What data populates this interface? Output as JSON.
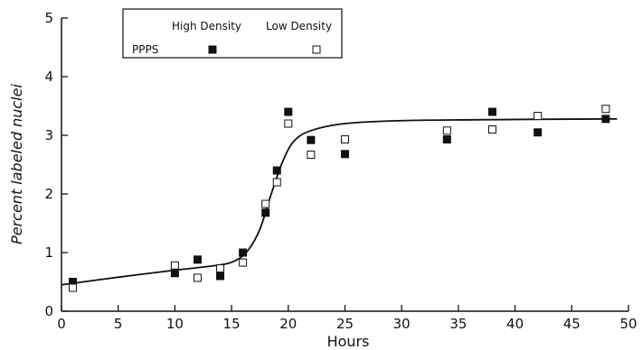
{
  "chart_data": {
    "type": "scatter",
    "xlabel": "Hours",
    "ylabel": "Percent labeled nuclei",
    "xlim": [
      0,
      50
    ],
    "ylim": [
      0,
      5
    ],
    "x_ticks": [
      "0",
      "5",
      "10",
      "15",
      "20",
      "25",
      "30",
      "35",
      "40",
      "45",
      "50"
    ],
    "y_ticks": [
      "0",
      "1",
      "2",
      "3",
      "4",
      "5"
    ],
    "grid": false,
    "legend": {
      "position": "top-left",
      "group_label": "PPPS",
      "entries": [
        {
          "label": "High Density",
          "marker": "filled-square"
        },
        {
          "label": "Low Density",
          "marker": "open-square"
        }
      ]
    },
    "series": [
      {
        "name": "High Density",
        "marker": "filled-square",
        "points": [
          {
            "x": 1,
            "y": 0.5
          },
          {
            "x": 10,
            "y": 0.65
          },
          {
            "x": 12,
            "y": 0.88
          },
          {
            "x": 14,
            "y": 0.6
          },
          {
            "x": 16,
            "y": 1.0
          },
          {
            "x": 18,
            "y": 1.68
          },
          {
            "x": 19,
            "y": 2.4
          },
          {
            "x": 20,
            "y": 3.4
          },
          {
            "x": 22,
            "y": 2.92
          },
          {
            "x": 25,
            "y": 2.68
          },
          {
            "x": 34,
            "y": 2.93
          },
          {
            "x": 38,
            "y": 3.4
          },
          {
            "x": 42,
            "y": 3.05
          },
          {
            "x": 48,
            "y": 3.28
          }
        ]
      },
      {
        "name": "Low Density",
        "marker": "open-square",
        "points": [
          {
            "x": 1,
            "y": 0.4
          },
          {
            "x": 10,
            "y": 0.78
          },
          {
            "x": 12,
            "y": 0.57
          },
          {
            "x": 14,
            "y": 0.73
          },
          {
            "x": 16,
            "y": 0.83
          },
          {
            "x": 18,
            "y": 1.83
          },
          {
            "x": 19,
            "y": 2.2
          },
          {
            "x": 20,
            "y": 3.2
          },
          {
            "x": 22,
            "y": 2.67
          },
          {
            "x": 25,
            "y": 2.93
          },
          {
            "x": 34,
            "y": 3.08
          },
          {
            "x": 38,
            "y": 3.1
          },
          {
            "x": 42,
            "y": 3.33
          },
          {
            "x": 48,
            "y": 3.45
          }
        ]
      }
    ],
    "fit_curve": {
      "points": [
        {
          "x": 0,
          "y": 0.45
        },
        {
          "x": 5,
          "y": 0.58
        },
        {
          "x": 10,
          "y": 0.7
        },
        {
          "x": 14,
          "y": 0.79
        },
        {
          "x": 15.5,
          "y": 0.88
        },
        {
          "x": 16.5,
          "y": 1.05
        },
        {
          "x": 17.5,
          "y": 1.4
        },
        {
          "x": 18.5,
          "y": 2.0
        },
        {
          "x": 19.5,
          "y": 2.55
        },
        {
          "x": 20.5,
          "y": 2.9
        },
        {
          "x": 22,
          "y": 3.08
        },
        {
          "x": 25,
          "y": 3.2
        },
        {
          "x": 30,
          "y": 3.25
        },
        {
          "x": 40,
          "y": 3.27
        },
        {
          "x": 49,
          "y": 3.28
        }
      ]
    }
  }
}
